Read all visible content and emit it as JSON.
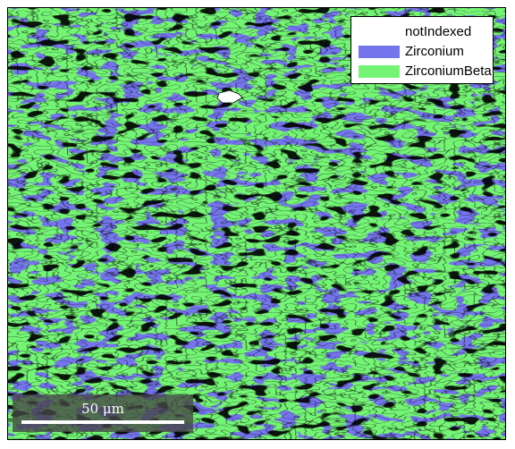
{
  "colors": {
    "background": "#ffffff",
    "zirconium": "#7474ec",
    "zirconium_beta": "#74f474",
    "not_indexed": "#ffffff",
    "boundary": "#000000"
  },
  "legend": {
    "entries": [
      {
        "label": "notIndexed",
        "color": "#ffffff"
      },
      {
        "label": "Zirconium",
        "color": "#7474ec"
      },
      {
        "label": "ZirconiumBeta",
        "color": "#74f474"
      }
    ]
  },
  "scalebar": {
    "label": "50 μm"
  }
}
